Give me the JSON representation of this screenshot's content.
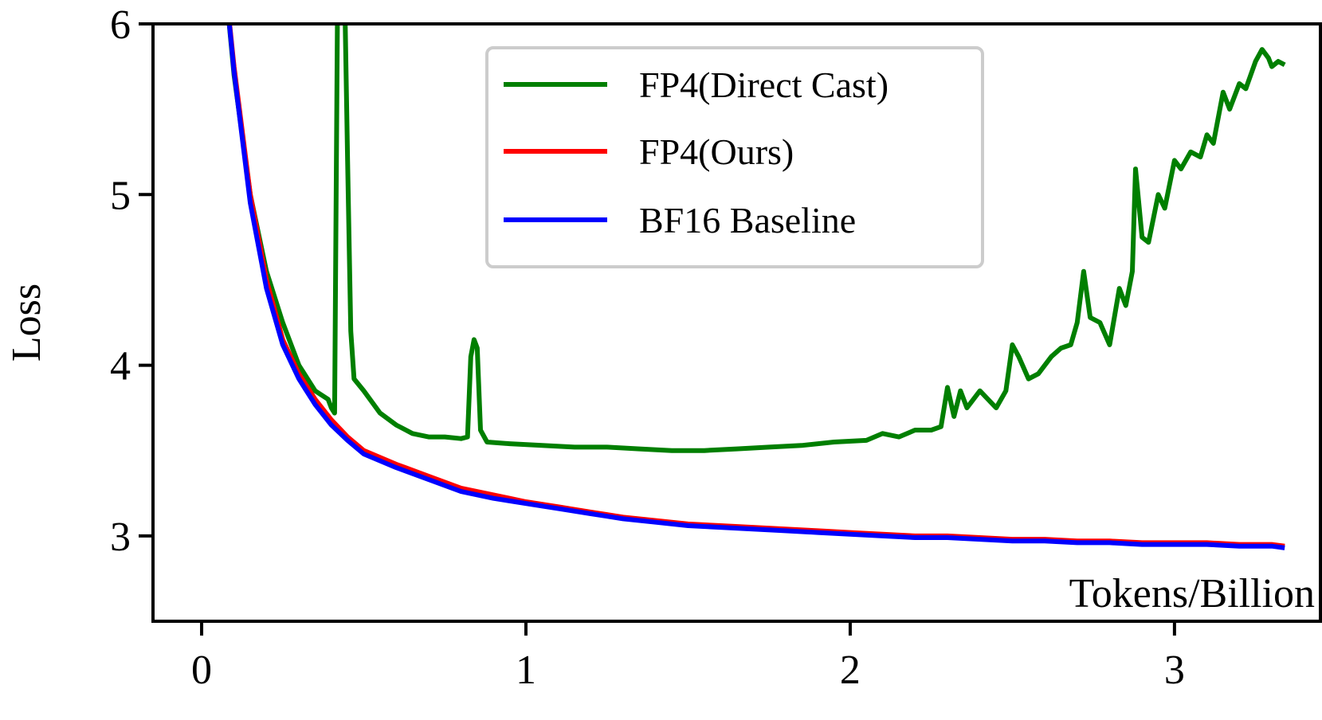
{
  "chart_data": {
    "type": "line",
    "xlabel": "Tokens/Billion",
    "ylabel": "Loss",
    "xlim": [
      -0.15,
      3.45
    ],
    "ylim": [
      2.5,
      6.0
    ],
    "xticks": [
      0,
      1,
      2,
      3
    ],
    "yticks": [
      3,
      4,
      5,
      6
    ],
    "grid": false,
    "legend_position": "top-center",
    "series": [
      {
        "name": "FP4(Direct Cast)",
        "color": "#007f00",
        "points": [
          [
            0.07,
            6.3
          ],
          [
            0.1,
            5.7
          ],
          [
            0.15,
            5.0
          ],
          [
            0.2,
            4.55
          ],
          [
            0.25,
            4.25
          ],
          [
            0.3,
            4.0
          ],
          [
            0.35,
            3.85
          ],
          [
            0.39,
            3.8
          ],
          [
            0.4,
            3.75
          ],
          [
            0.41,
            3.72
          ],
          [
            0.42,
            6.4
          ],
          [
            0.44,
            6.3
          ],
          [
            0.45,
            5.2
          ],
          [
            0.46,
            4.2
          ],
          [
            0.47,
            3.92
          ],
          [
            0.5,
            3.85
          ],
          [
            0.55,
            3.72
          ],
          [
            0.6,
            3.65
          ],
          [
            0.65,
            3.6
          ],
          [
            0.7,
            3.58
          ],
          [
            0.75,
            3.58
          ],
          [
            0.8,
            3.57
          ],
          [
            0.82,
            3.58
          ],
          [
            0.83,
            4.05
          ],
          [
            0.84,
            4.15
          ],
          [
            0.85,
            4.1
          ],
          [
            0.86,
            3.62
          ],
          [
            0.88,
            3.55
          ],
          [
            0.95,
            3.54
          ],
          [
            1.05,
            3.53
          ],
          [
            1.15,
            3.52
          ],
          [
            1.25,
            3.52
          ],
          [
            1.35,
            3.51
          ],
          [
            1.45,
            3.5
          ],
          [
            1.55,
            3.5
          ],
          [
            1.65,
            3.51
          ],
          [
            1.75,
            3.52
          ],
          [
            1.85,
            3.53
          ],
          [
            1.95,
            3.55
          ],
          [
            2.05,
            3.56
          ],
          [
            2.1,
            3.6
          ],
          [
            2.15,
            3.58
          ],
          [
            2.2,
            3.62
          ],
          [
            2.25,
            3.62
          ],
          [
            2.28,
            3.64
          ],
          [
            2.3,
            3.87
          ],
          [
            2.32,
            3.7
          ],
          [
            2.34,
            3.85
          ],
          [
            2.36,
            3.75
          ],
          [
            2.4,
            3.85
          ],
          [
            2.45,
            3.75
          ],
          [
            2.48,
            3.85
          ],
          [
            2.5,
            4.12
          ],
          [
            2.52,
            4.05
          ],
          [
            2.55,
            3.92
          ],
          [
            2.58,
            3.95
          ],
          [
            2.62,
            4.05
          ],
          [
            2.65,
            4.1
          ],
          [
            2.68,
            4.12
          ],
          [
            2.7,
            4.25
          ],
          [
            2.72,
            4.55
          ],
          [
            2.74,
            4.28
          ],
          [
            2.77,
            4.25
          ],
          [
            2.8,
            4.12
          ],
          [
            2.83,
            4.45
          ],
          [
            2.85,
            4.35
          ],
          [
            2.87,
            4.55
          ],
          [
            2.88,
            5.15
          ],
          [
            2.9,
            4.75
          ],
          [
            2.92,
            4.72
          ],
          [
            2.95,
            5.0
          ],
          [
            2.97,
            4.92
          ],
          [
            3.0,
            5.2
          ],
          [
            3.02,
            5.15
          ],
          [
            3.05,
            5.25
          ],
          [
            3.08,
            5.22
          ],
          [
            3.1,
            5.35
          ],
          [
            3.12,
            5.3
          ],
          [
            3.15,
            5.6
          ],
          [
            3.17,
            5.5
          ],
          [
            3.2,
            5.65
          ],
          [
            3.22,
            5.62
          ],
          [
            3.25,
            5.78
          ],
          [
            3.27,
            5.85
          ],
          [
            3.29,
            5.8
          ],
          [
            3.3,
            5.75
          ],
          [
            3.32,
            5.78
          ],
          [
            3.34,
            5.76
          ]
        ]
      },
      {
        "name": "FP4(Ours)",
        "color": "#ff0000",
        "points": [
          [
            0.07,
            6.3
          ],
          [
            0.1,
            5.75
          ],
          [
            0.15,
            5.0
          ],
          [
            0.2,
            4.5
          ],
          [
            0.25,
            4.15
          ],
          [
            0.3,
            3.95
          ],
          [
            0.35,
            3.8
          ],
          [
            0.4,
            3.68
          ],
          [
            0.45,
            3.58
          ],
          [
            0.5,
            3.5
          ],
          [
            0.6,
            3.42
          ],
          [
            0.7,
            3.35
          ],
          [
            0.8,
            3.28
          ],
          [
            0.9,
            3.24
          ],
          [
            1.0,
            3.2
          ],
          [
            1.1,
            3.17
          ],
          [
            1.2,
            3.14
          ],
          [
            1.3,
            3.11
          ],
          [
            1.4,
            3.09
          ],
          [
            1.5,
            3.07
          ],
          [
            1.6,
            3.06
          ],
          [
            1.7,
            3.05
          ],
          [
            1.8,
            3.04
          ],
          [
            1.9,
            3.03
          ],
          [
            2.0,
            3.02
          ],
          [
            2.1,
            3.01
          ],
          [
            2.2,
            3.0
          ],
          [
            2.3,
            3.0
          ],
          [
            2.4,
            2.99
          ],
          [
            2.5,
            2.98
          ],
          [
            2.6,
            2.98
          ],
          [
            2.7,
            2.97
          ],
          [
            2.8,
            2.97
          ],
          [
            2.9,
            2.96
          ],
          [
            3.0,
            2.96
          ],
          [
            3.1,
            2.96
          ],
          [
            3.2,
            2.95
          ],
          [
            3.3,
            2.95
          ],
          [
            3.34,
            2.94
          ]
        ]
      },
      {
        "name": "BF16 Baseline",
        "color": "#0000ff",
        "points": [
          [
            0.07,
            6.3
          ],
          [
            0.1,
            5.72
          ],
          [
            0.15,
            4.95
          ],
          [
            0.2,
            4.45
          ],
          [
            0.25,
            4.12
          ],
          [
            0.3,
            3.92
          ],
          [
            0.35,
            3.77
          ],
          [
            0.4,
            3.65
          ],
          [
            0.45,
            3.56
          ],
          [
            0.5,
            3.48
          ],
          [
            0.6,
            3.4
          ],
          [
            0.7,
            3.33
          ],
          [
            0.8,
            3.26
          ],
          [
            0.9,
            3.22
          ],
          [
            1.0,
            3.19
          ],
          [
            1.1,
            3.16
          ],
          [
            1.2,
            3.13
          ],
          [
            1.3,
            3.1
          ],
          [
            1.4,
            3.08
          ],
          [
            1.5,
            3.06
          ],
          [
            1.6,
            3.05
          ],
          [
            1.7,
            3.04
          ],
          [
            1.8,
            3.03
          ],
          [
            1.9,
            3.02
          ],
          [
            2.0,
            3.01
          ],
          [
            2.1,
            3.0
          ],
          [
            2.2,
            2.99
          ],
          [
            2.3,
            2.99
          ],
          [
            2.4,
            2.98
          ],
          [
            2.5,
            2.97
          ],
          [
            2.6,
            2.97
          ],
          [
            2.7,
            2.96
          ],
          [
            2.8,
            2.96
          ],
          [
            2.9,
            2.95
          ],
          [
            3.0,
            2.95
          ],
          [
            3.1,
            2.95
          ],
          [
            3.2,
            2.94
          ],
          [
            3.3,
            2.94
          ],
          [
            3.34,
            2.93
          ]
        ]
      }
    ]
  }
}
